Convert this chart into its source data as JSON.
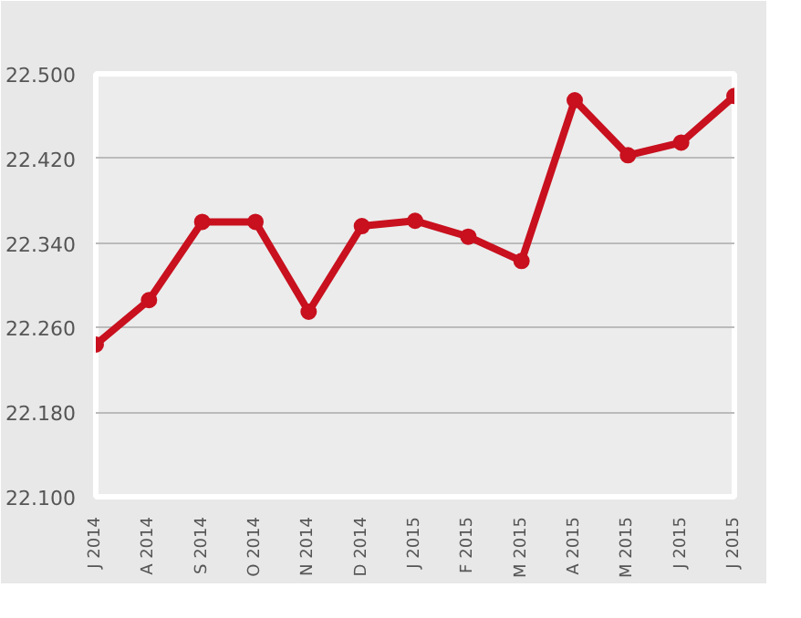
{
  "chart_data": {
    "type": "line",
    "categories": [
      "J 2014",
      "A 2014",
      "S 2014",
      "O 2014",
      "N 2014",
      "D 2014",
      "J 2015",
      "F 2015",
      "M 2015",
      "A 2015",
      "M 2015",
      "J 2015",
      "J 2015"
    ],
    "series": [
      {
        "color": "#c8101e",
        "values": [
          22.244,
          22.286,
          22.36,
          22.36,
          22.275,
          22.356,
          22.361,
          22.346,
          22.323,
          22.475,
          22.423,
          22.435,
          22.479
        ]
      }
    ],
    "ylim": [
      22.1,
      22.5
    ],
    "yticks": [
      {
        "value": 22.1,
        "label": "22.100"
      },
      {
        "value": 22.18,
        "label": "22.180"
      },
      {
        "value": 22.26,
        "label": "22.260"
      },
      {
        "value": 22.34,
        "label": "22.340"
      },
      {
        "value": 22.42,
        "label": "22.420"
      },
      {
        "value": 22.5,
        "label": "22.500"
      }
    ],
    "grid": "y",
    "marker": "circle",
    "line_style": "solid"
  }
}
